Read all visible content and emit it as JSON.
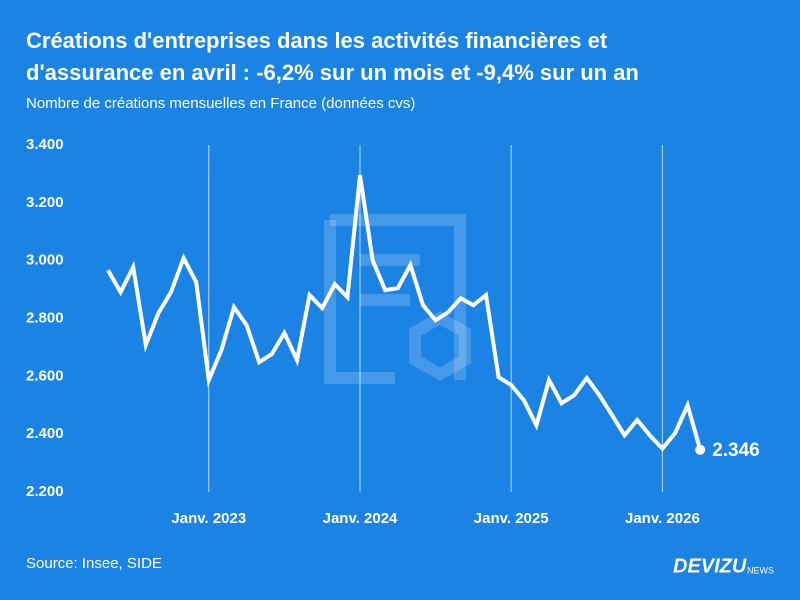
{
  "chart_data": {
    "type": "line",
    "title": [
      "Créations d'entreprises dans les activités financières et",
      "d'assurance en avril : -6,2% sur un mois et -9,4% sur un an"
    ],
    "subtitle": "Nombre de créations mensuelles en France (données cvs)",
    "source": "Source: Insee, SIDE",
    "brand": "DEVIZU",
    "brand_suffix": "NEWS",
    "categories": [
      null,
      null,
      null,
      null,
      null,
      null,
      null,
      null,
      "Janv. 2023",
      null,
      null,
      null,
      null,
      null,
      null,
      null,
      null,
      null,
      null,
      null,
      "Janv. 2024",
      null,
      null,
      null,
      null,
      null,
      null,
      null,
      null,
      null,
      null,
      null,
      "Janv. 2025",
      null,
      null,
      null,
      null,
      null,
      null,
      null,
      null,
      null,
      null,
      null,
      "Janv. 2026",
      null,
      null,
      null
    ],
    "series": [
      {
        "name": "Créations",
        "color": "#ffffff",
        "values": [
          2967,
          2891,
          2978,
          2708,
          2819,
          2891,
          3009,
          2926,
          2587,
          2691,
          2839,
          2777,
          2649,
          2677,
          2750,
          2656,
          2881,
          2836,
          2919,
          2874,
          3296,
          3002,
          2898,
          2905,
          2985,
          2846,
          2794,
          2822,
          2870,
          2846,
          2881,
          2597,
          2570,
          2518,
          2431,
          2587,
          2507,
          2535,
          2594,
          2535,
          2466,
          2396,
          2449,
          2396,
          2350,
          2403,
          2500,
          2346
        ],
        "value_labels": [
          null,
          null,
          null,
          null,
          null,
          null,
          null,
          null,
          null,
          null,
          null,
          null,
          null,
          null,
          null,
          null,
          null,
          null,
          null,
          null,
          null,
          null,
          null,
          null,
          null,
          null,
          null,
          null,
          null,
          null,
          null,
          null,
          null,
          null,
          null,
          null,
          null,
          null,
          null,
          null,
          null,
          null,
          null,
          null,
          null,
          null,
          null,
          "2.346"
        ]
      }
    ],
    "ylim": [
      2200,
      3400
    ],
    "yticks": [
      {
        "value": 2200,
        "label": "2.200"
      },
      {
        "value": 2400,
        "label": "2.400"
      },
      {
        "value": 2600,
        "label": "2.600"
      },
      {
        "value": 2800,
        "label": "2.800"
      },
      {
        "value": 3000,
        "label": "3.000"
      },
      {
        "value": 3200,
        "label": "3.200"
      },
      {
        "value": 3400,
        "label": "3.400"
      }
    ],
    "grid": "x"
  }
}
